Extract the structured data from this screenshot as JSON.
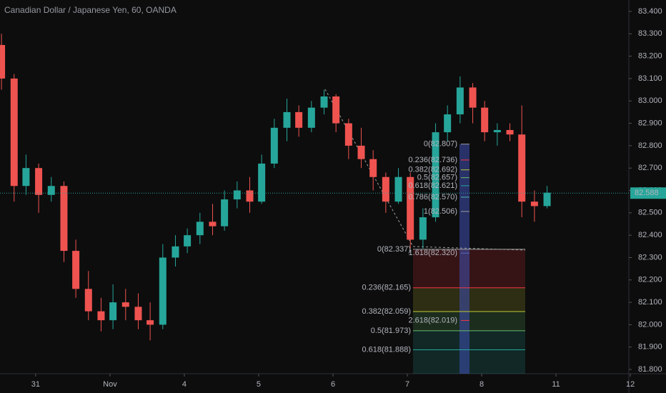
{
  "chart_data": {
    "type": "candlestick",
    "title": "Canadian Dollar / Japanese Yen, 60, OANDA",
    "x": [
      -0.46,
      -0.29,
      -0.13,
      0.04,
      0.21,
      0.38,
      0.54,
      0.71,
      0.88,
      1.04,
      1.21,
      1.38,
      1.54,
      1.71,
      1.88,
      2.04,
      2.21,
      2.38,
      2.54,
      2.71,
      2.88,
      3.04,
      3.21,
      3.38,
      3.54,
      3.71,
      3.88,
      4.04,
      4.21,
      4.38,
      4.54,
      4.71,
      4.88,
      5.04,
      5.21,
      5.38,
      5.54,
      5.71,
      5.88,
      6.04,
      6.21,
      6.38,
      6.54,
      6.71,
      6.88
    ],
    "open": [
      83.25,
      83.1,
      82.62,
      82.7,
      82.58,
      82.62,
      82.33,
      82.16,
      82.06,
      82.02,
      82.1,
      82.08,
      82.02,
      82.0,
      82.3,
      82.35,
      82.4,
      82.46,
      82.44,
      82.56,
      82.6,
      82.55,
      82.72,
      82.88,
      82.95,
      82.88,
      82.97,
      83.02,
      82.9,
      82.8,
      82.74,
      82.66,
      82.55,
      82.66,
      82.38,
      82.48,
      82.86,
      82.94,
      83.06,
      82.97,
      82.86,
      82.87,
      82.85,
      82.55,
      82.53
    ],
    "high": [
      83.3,
      83.12,
      82.76,
      82.72,
      82.66,
      82.64,
      82.38,
      82.24,
      82.12,
      82.18,
      82.16,
      82.14,
      82.1,
      82.36,
      82.4,
      82.43,
      82.5,
      82.54,
      82.6,
      82.64,
      82.66,
      82.76,
      82.92,
      83.01,
      82.98,
      83.0,
      83.05,
      83.03,
      82.92,
      82.88,
      82.78,
      82.68,
      82.7,
      82.68,
      82.52,
      82.9,
      82.98,
      83.11,
      83.08,
      83.0,
      82.9,
      82.9,
      82.98,
      82.6,
      82.62
    ],
    "low": [
      83.05,
      82.55,
      82.58,
      82.5,
      82.55,
      82.28,
      82.12,
      82.02,
      81.97,
      81.98,
      82.02,
      81.98,
      81.93,
      81.98,
      82.26,
      82.32,
      82.36,
      82.4,
      82.42,
      82.52,
      82.5,
      82.54,
      82.7,
      82.82,
      82.84,
      82.86,
      82.94,
      82.86,
      82.74,
      82.7,
      82.6,
      82.5,
      82.54,
      82.34,
      82.34,
      82.46,
      82.82,
      82.9,
      82.9,
      82.82,
      82.8,
      82.82,
      82.48,
      82.46,
      82.52
    ],
    "close": [
      83.1,
      82.62,
      82.7,
      82.58,
      82.62,
      82.33,
      82.16,
      82.06,
      82.02,
      82.1,
      82.08,
      82.02,
      82.0,
      82.3,
      82.35,
      82.4,
      82.46,
      82.44,
      82.56,
      82.6,
      82.55,
      82.72,
      82.88,
      82.95,
      82.88,
      82.97,
      83.02,
      82.9,
      82.8,
      82.74,
      82.66,
      82.55,
      82.66,
      82.38,
      82.48,
      82.86,
      82.94,
      83.06,
      82.97,
      82.86,
      82.87,
      82.85,
      82.55,
      82.53,
      82.59
    ],
    "up_color": "#26a69a",
    "down_color": "#ef5350",
    "xlim": [
      -0.48,
      7.98
    ],
    "xticks": [
      {
        "value": 0,
        "label": "31"
      },
      {
        "value": 1,
        "label": "Nov"
      },
      {
        "value": 2,
        "label": "4"
      },
      {
        "value": 3,
        "label": "5"
      },
      {
        "value": 4,
        "label": "6"
      },
      {
        "value": 5,
        "label": "7"
      },
      {
        "value": 6,
        "label": "8"
      },
      {
        "value": 7,
        "label": "11"
      },
      {
        "value": 8,
        "label": "12"
      }
    ],
    "ylim": [
      81.781,
      83.451
    ],
    "yticks": [
      {
        "value": 81.8,
        "label": "81.800"
      },
      {
        "value": 81.9,
        "label": "81.900"
      },
      {
        "value": 82,
        "label": "82.000"
      },
      {
        "value": 82.1,
        "label": "82.100"
      },
      {
        "value": 82.2,
        "label": "82.200"
      },
      {
        "value": 82.3,
        "label": "82.300"
      },
      {
        "value": 82.4,
        "label": "82.400"
      },
      {
        "value": 82.5,
        "label": "82.500"
      },
      {
        "value": 82.6,
        "label": "82.600"
      },
      {
        "value": 82.7,
        "label": "82.700"
      },
      {
        "value": 82.8,
        "label": "82.800"
      },
      {
        "value": 82.9,
        "label": "82.900"
      },
      {
        "value": 83,
        "label": "83.000"
      },
      {
        "value": 83.1,
        "label": "83.100"
      },
      {
        "value": 83.2,
        "label": "83.200"
      },
      {
        "value": 83.3,
        "label": "83.300"
      },
      {
        "value": 83.4,
        "label": "83.400"
      }
    ],
    "last_price": 82.588,
    "last_price_color": "#26a69a",
    "fib_upper": [
      {
        "label": "0(82.807)",
        "value": 82.807,
        "color": "#9e9e9e"
      },
      {
        "label": "0.236(82.736)",
        "value": 82.736,
        "color": "#f23645"
      },
      {
        "label": "0.382(82.692)",
        "value": 82.692,
        "color": "#c0ca33"
      },
      {
        "label": "0.5(82.657)",
        "value": 82.657,
        "color": "#66bb6a"
      },
      {
        "label": "0.618(82.621)",
        "value": 82.621,
        "color": "#26a69a"
      },
      {
        "label": "0.786(82.570)",
        "value": 82.57,
        "color": "#4db6ac"
      },
      {
        "label": "1(82.506)",
        "value": 82.506,
        "color": "#9e9e9e"
      },
      {
        "label": "1.618(82.320)",
        "value": 82.32,
        "color": "#5c6bc0"
      },
      {
        "label": "2.618(82.019)",
        "value": 82.019,
        "color": "#f23645"
      }
    ],
    "fib_lower": [
      {
        "label": "0(82.337)",
        "value": 82.337,
        "color": "#9e9e9e"
      },
      {
        "label": "0.236(82.165)",
        "value": 82.165,
        "color": "#f23645"
      },
      {
        "label": "0.382(82.059)",
        "value": 82.059,
        "color": "#c0ca33"
      },
      {
        "label": "0.5(81.973)",
        "value": 81.973,
        "color": "#66bb6a"
      },
      {
        "label": "0.618(81.888)",
        "value": 81.888,
        "color": "#26a69a"
      }
    ]
  }
}
